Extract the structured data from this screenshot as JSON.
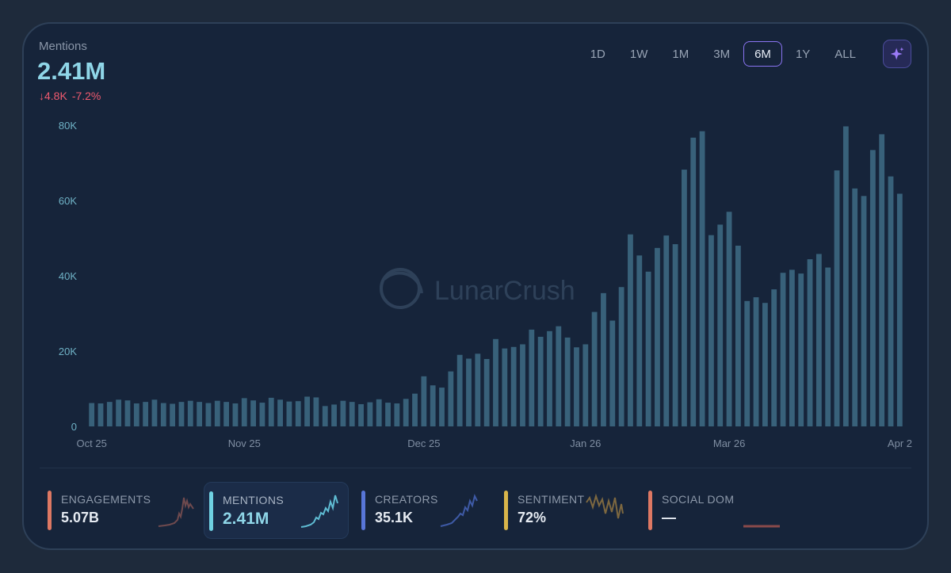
{
  "header": {
    "metric_label": "Mentions",
    "metric_value": "2.41M",
    "change_abs": "↓4.8K",
    "change_pct": "-7.2%"
  },
  "time_ranges": [
    "1D",
    "1W",
    "1M",
    "3M",
    "6M",
    "1Y",
    "ALL"
  ],
  "active_range": "6M",
  "ai_button_icon": "sparkle-icon",
  "watermark": "LunarCrush",
  "colors": {
    "bar": "#38617a",
    "accent": "#8fd6e8",
    "negative": "#ef5a6f",
    "active_border": "#8a74f2"
  },
  "chart_data": {
    "type": "bar",
    "title": "",
    "xlabel": "",
    "ylabel": "",
    "ylim": [
      0,
      80000
    ],
    "y_ticks": [
      "0",
      "20K",
      "40K",
      "60K",
      "80K"
    ],
    "x_tick_labels": [
      "Oct 25",
      "Nov 25",
      "Dec 25",
      "Jan 26",
      "Mar 26",
      "Apr 2"
    ],
    "grid": false,
    "series": [
      {
        "values": [
          6200,
          6100,
          6500,
          7100,
          6900,
          6100,
          6500,
          7100,
          6200,
          6000,
          6500,
          6800,
          6500,
          6200,
          6800,
          6500,
          6100,
          7500,
          6900,
          6300,
          7600,
          7100,
          6600,
          6700,
          7900,
          7700,
          5400,
          5800,
          6800,
          6500,
          5900,
          6400,
          7200,
          6300,
          6100,
          7300,
          8700,
          13300,
          10900,
          10300,
          14600,
          19000,
          18000,
          19300,
          17900,
          23200,
          20700,
          21100,
          21800,
          25700,
          23800,
          25300,
          26600,
          23600,
          21000,
          21800,
          30400,
          35400,
          28100,
          37000,
          51000,
          45400,
          41100,
          47400,
          50700,
          48400,
          68200,
          76700,
          78400,
          50800,
          53600,
          57000,
          48000,
          33300,
          34300,
          32800,
          36400,
          40800,
          41600,
          40600,
          44400,
          45800,
          42200,
          68000,
          79700,
          63200,
          61200,
          73400,
          77600,
          66400,
          61800
        ]
      }
    ]
  },
  "metric_cards": [
    {
      "label": "ENGAGEMENTS",
      "value": "5.07B",
      "color": "#de7863",
      "spark": "#6f4a4e",
      "active": false
    },
    {
      "label": "MENTIONS",
      "value": "2.41M",
      "color": "#6fd1e2",
      "spark": "#5fbcd3",
      "active": true
    },
    {
      "label": "CREATORS",
      "value": "35.1K",
      "color": "#5876d8",
      "spark": "#3e5aa6",
      "active": false
    },
    {
      "label": "SENTIMENT",
      "value": "72%",
      "color": "#d9b54a",
      "spark": "#7d6840",
      "active": false
    },
    {
      "label": "SOCIAL DOM",
      "value": "—",
      "color": "#de7863",
      "spark": "#8a4a4a",
      "active": false
    }
  ]
}
